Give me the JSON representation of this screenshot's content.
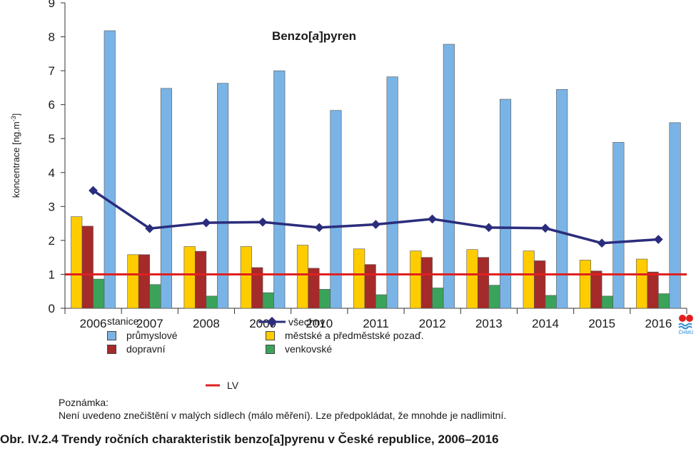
{
  "chart_data": {
    "type": "bar",
    "title": "Benzo[a]pyren",
    "title_prefix": "Benzo[",
    "title_italic": "a",
    "title_suffix": "]pyren",
    "ylabel": "koncentrace [ng.m-3]",
    "ylabel_main": "koncentrace [ng.m",
    "ylabel_sup": "-3",
    "ylabel_end": "]",
    "ylim": [
      0,
      9
    ],
    "yticks": [
      "0",
      "1",
      "2",
      "3",
      "4",
      "5",
      "6",
      "7",
      "8",
      "9"
    ],
    "grid": false,
    "categories": [
      "2006",
      "2007",
      "2008",
      "2009",
      "2010",
      "2011",
      "2012",
      "2013",
      "2014",
      "2015",
      "2016"
    ],
    "series": [
      {
        "name": "městské a předměstské pozaď.",
        "type": "bar",
        "color": "#ffcc00",
        "values": [
          2.7,
          1.58,
          1.82,
          1.82,
          1.86,
          1.75,
          1.69,
          1.73,
          1.69,
          1.42,
          1.45
        ]
      },
      {
        "name": "dopravní",
        "type": "bar",
        "color": "#a52a2a",
        "values": [
          2.42,
          1.58,
          1.68,
          1.2,
          1.18,
          1.29,
          1.5,
          1.5,
          1.4,
          1.1,
          1.07
        ]
      },
      {
        "name": "venkovské",
        "type": "bar",
        "color": "#3aa35a",
        "values": [
          0.86,
          0.7,
          0.36,
          0.46,
          0.56,
          0.4,
          0.6,
          0.68,
          0.38,
          0.36,
          0.43
        ]
      },
      {
        "name": "průmyslové",
        "type": "bar",
        "color": "#7ab4e6",
        "values": [
          8.18,
          6.48,
          6.63,
          7.0,
          5.83,
          6.82,
          7.78,
          6.16,
          6.45,
          4.89,
          5.47
        ]
      },
      {
        "name": "všechny",
        "type": "line",
        "color": "#2b2d7c",
        "values": [
          3.47,
          2.35,
          2.52,
          2.54,
          2.38,
          2.47,
          2.63,
          2.38,
          2.36,
          1.92,
          2.03
        ]
      }
    ],
    "reference_line": {
      "name": "LV",
      "value": 1,
      "color": "#e02020"
    }
  },
  "legend": {
    "heading": "stanice:",
    "items": {
      "industrial": "průmyslové",
      "traffic": "dopravní",
      "all": "všechny",
      "urban": "městské a předměstské pozaď.",
      "rural": "venkovské",
      "lv": "LV"
    }
  },
  "note": {
    "label": "Poznámka:",
    "text": "Není uvedeno znečištění v malých sídlech (málo měření). Lze předpokládat, že mnohde je nadlimitní."
  },
  "caption": "Obr. IV.2.4  Trendy ročních charakteristik benzo[a]pyrenu v České republice, 2006–2016",
  "logo_text": "ČHMÚ"
}
